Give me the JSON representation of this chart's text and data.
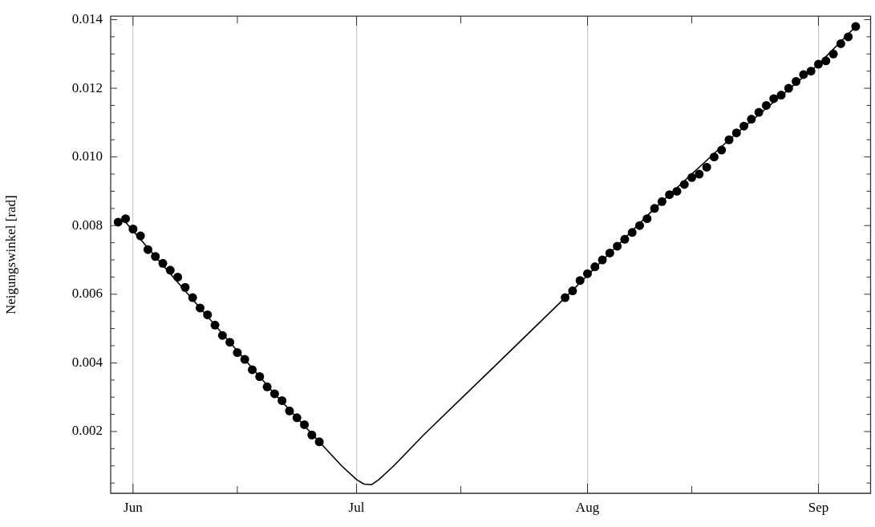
{
  "chart_data": {
    "type": "scatter",
    "ylabel": "Neigungswinkel [rad]",
    "xlim": [
      "--05-29",
      "--09-08"
    ],
    "xticks": [
      {
        "value": "--06-01",
        "label": "Jun"
      },
      {
        "value": "--06-15",
        "label": null
      },
      {
        "value": "--07-01",
        "label": "Jul"
      },
      {
        "value": "--07-15",
        "label": null
      },
      {
        "value": "--08-01",
        "label": "Aug"
      },
      {
        "value": "--08-15",
        "label": null
      },
      {
        "value": "--09-01",
        "label": "Sep"
      }
    ],
    "ylim": [
      0.0002,
      0.0141
    ],
    "yticks": [
      {
        "value": 0.0005,
        "label": null
      },
      {
        "value": 0.001,
        "label": null
      },
      {
        "value": 0.0015,
        "label": null
      },
      0.002,
      {
        "value": 0.0025,
        "label": null
      },
      {
        "value": 0.003,
        "label": null
      },
      {
        "value": 0.0035,
        "label": null
      },
      0.004,
      {
        "value": 0.0045,
        "label": null
      },
      {
        "value": 0.005,
        "label": null
      },
      {
        "value": 0.0055,
        "label": null
      },
      0.006,
      {
        "value": 0.0065,
        "label": null
      },
      {
        "value": 0.007,
        "label": null
      },
      {
        "value": 0.0075,
        "label": null
      },
      0.008,
      {
        "value": 0.0085,
        "label": null
      },
      {
        "value": 0.009,
        "label": null
      },
      {
        "value": 0.0095,
        "label": null
      },
      {
        "value": 0.01,
        "label": "0.010"
      },
      {
        "value": 0.0105,
        "label": null
      },
      {
        "value": 0.011,
        "label": null
      },
      {
        "value": 0.0115,
        "label": null
      },
      0.012,
      {
        "value": 0.0125,
        "label": null
      },
      {
        "value": 0.013,
        "label": null
      },
      {
        "value": 0.0135,
        "label": null
      },
      0.014
    ],
    "grid": "x",
    "marker": "circle",
    "series": [
      {
        "type": "line",
        "color": "#000000",
        "line_style": "solid",
        "marker": "none",
        "x": [
          "--05-31",
          "--06-10",
          "--06-20",
          "--06-26",
          "--06-29",
          "--07-01",
          "--07-02",
          "--07-03",
          "--07-04",
          "--07-06",
          "--07-10",
          "--07-20",
          "--07-29",
          "--08-10",
          "--08-20",
          "--09-01",
          "--09-06"
        ],
        "values": [
          0.0081,
          0.0056,
          0.0031,
          0.0017,
          0.001,
          0.0006,
          0.00047,
          0.00045,
          0.0006,
          0.001,
          0.0019,
          0.004,
          0.0059,
          0.0085,
          0.0105,
          0.0127,
          0.0138
        ]
      },
      {
        "color": "#000000",
        "x": [
          "--05-30",
          "--05-31",
          "--06-01",
          "--06-02",
          "--06-03",
          "--06-04",
          "--06-05",
          "--06-06",
          "--06-07",
          "--06-08",
          "--06-09",
          "--06-10",
          "--06-11",
          "--06-12",
          "--06-13",
          "--06-14",
          "--06-15",
          "--06-16",
          "--06-17",
          "--06-18",
          "--06-19",
          "--06-20",
          "--06-21",
          "--06-22",
          "--06-23",
          "--06-24",
          "--06-25",
          "--06-26"
        ],
        "values": [
          0.0081,
          0.0082,
          0.0079,
          0.0077,
          0.0073,
          0.0071,
          0.0069,
          0.0067,
          0.0065,
          0.0062,
          0.0059,
          0.0056,
          0.0054,
          0.0051,
          0.0048,
          0.0046,
          0.0043,
          0.0041,
          0.0038,
          0.0036,
          0.0033,
          0.0031,
          0.0029,
          0.0026,
          0.0024,
          0.0022,
          0.0019,
          0.0017
        ]
      },
      {
        "color": "#000000",
        "x": [
          "--07-29",
          "--07-30",
          "--07-31",
          "--08-01",
          "--08-02",
          "--08-03",
          "--08-04",
          "--08-05",
          "--08-06",
          "--08-07",
          "--08-08",
          "--08-09",
          "--08-10",
          "--08-11",
          "--08-12",
          "--08-13",
          "--08-14",
          "--08-15",
          "--08-16",
          "--08-17",
          "--08-18",
          "--08-19",
          "--08-20",
          "--08-21",
          "--08-22",
          "--08-23",
          "--08-24",
          "--08-25",
          "--08-26",
          "--08-27",
          "--08-28",
          "--08-29",
          "--08-30",
          "--08-31",
          "--09-01",
          "--09-02",
          "--09-03",
          "--09-04",
          "--09-05",
          "--09-06"
        ],
        "values": [
          0.0059,
          0.0061,
          0.0064,
          0.0066,
          0.0068,
          0.007,
          0.0072,
          0.0074,
          0.0076,
          0.0078,
          0.008,
          0.0082,
          0.0085,
          0.0087,
          0.0089,
          0.009,
          0.0092,
          0.0094,
          0.0095,
          0.0097,
          0.01,
          0.0102,
          0.0105,
          0.0107,
          0.0109,
          0.0111,
          0.0113,
          0.0115,
          0.0117,
          0.0118,
          0.012,
          0.0122,
          0.0124,
          0.0125,
          0.0127,
          0.0128,
          0.013,
          0.0133,
          0.0135,
          0.0138
        ]
      }
    ]
  }
}
